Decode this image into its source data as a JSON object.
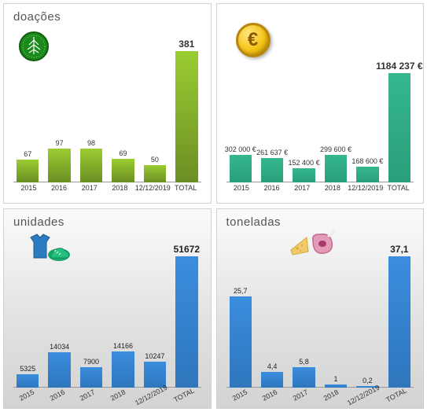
{
  "panels": [
    {
      "id": "doacoes",
      "title": "doações",
      "style": "flat",
      "bar_color_a": "#9acd32",
      "bar_color_b": "#6b8e23",
      "label_color": "#333333",
      "categories": [
        "2015",
        "2016",
        "2017",
        "2018",
        "12/12/2019",
        "TOTAL"
      ],
      "values": [
        67,
        97,
        98,
        69,
        50,
        381
      ],
      "value_labels": [
        "67",
        "97",
        "98",
        "69",
        "50",
        "381"
      ],
      "max": 381,
      "rotated_x": false,
      "value_label_inside": false
    },
    {
      "id": "euro",
      "title": "",
      "style": "flat",
      "bar_color_a": "#34b78f",
      "bar_color_b": "#2a9e7a",
      "label_color": "#333333",
      "categories": [
        "2015",
        "2016",
        "2017",
        "2018",
        "12/12/2019",
        "TOTAL"
      ],
      "values": [
        302000,
        261637,
        152400,
        299600,
        168600,
        1184237
      ],
      "value_labels": [
        "302 000 €",
        "261 637 €",
        "152 400 €",
        "299 600 €",
        "168 600 €",
        "1184 237 €"
      ],
      "max": 1184237,
      "rotated_x": false,
      "value_label_inside": false
    },
    {
      "id": "unidades",
      "title": "unidades",
      "style": "gradient",
      "bar_color_a": "#3a8dde",
      "bar_color_b": "#2f76bd",
      "label_color": "#222222",
      "categories": [
        "2015",
        "2016",
        "2017",
        "2018",
        "12/12/2019",
        "TOTAL"
      ],
      "values": [
        5325,
        14034,
        7900,
        14166,
        10247,
        51672
      ],
      "value_labels": [
        "5325",
        "14034",
        "7900",
        "14166",
        "10247",
        "51672"
      ],
      "max": 51672,
      "rotated_x": true,
      "value_label_inside": false
    },
    {
      "id": "toneladas",
      "title": "toneladas",
      "style": "gradient",
      "bar_color_a": "#3a8dde",
      "bar_color_b": "#2f76bd",
      "label_color": "#222222",
      "categories": [
        "2015",
        "2016",
        "2017",
        "2018",
        "12/12/2019",
        "TOTAL"
      ],
      "values": [
        25.7,
        4.4,
        5.8,
        1,
        0.2,
        37.1
      ],
      "value_labels": [
        "25,7",
        "4,4",
        "5,8",
        "1",
        "0,2",
        "37,1"
      ],
      "max": 37.1,
      "rotated_x": true,
      "value_label_inside": false
    }
  ]
}
